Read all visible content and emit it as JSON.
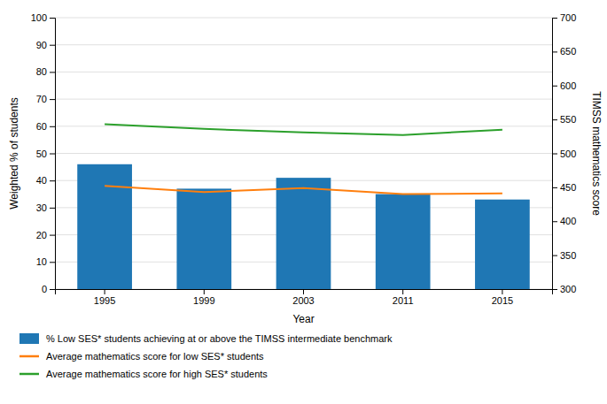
{
  "chart_data": {
    "type": "bar",
    "x_label": "Year",
    "y_label": "Weighted % of students",
    "y2_label": "TIMSS mathematics score",
    "categories": [
      "1995",
      "1999",
      "2003",
      "2011",
      "2015"
    ],
    "series": [
      {
        "name": "% Low SES* students achieving at or above the TIMSS intermediate benchmark",
        "type": "bar",
        "values": [
          46,
          37,
          41,
          35,
          33
        ]
      },
      {
        "name": "Average mathematics score for low SES* students",
        "type": "line",
        "axis": "y2",
        "values": [
          452,
          443,
          449,
          440,
          441
        ]
      },
      {
        "name": "Average mathematics score for high SES* students",
        "type": "line",
        "axis": "y2",
        "values": [
          543,
          536,
          531,
          527,
          535
        ]
      }
    ],
    "ylim": [
      0,
      100
    ],
    "yticks": [
      0,
      10,
      20,
      30,
      40,
      50,
      60,
      70,
      80,
      90,
      100
    ],
    "y2lim": [
      300,
      700
    ],
    "y2ticks": [
      300,
      350,
      400,
      450,
      500,
      550,
      600,
      650,
      700
    ],
    "grid": true,
    "legend": "bottom"
  }
}
